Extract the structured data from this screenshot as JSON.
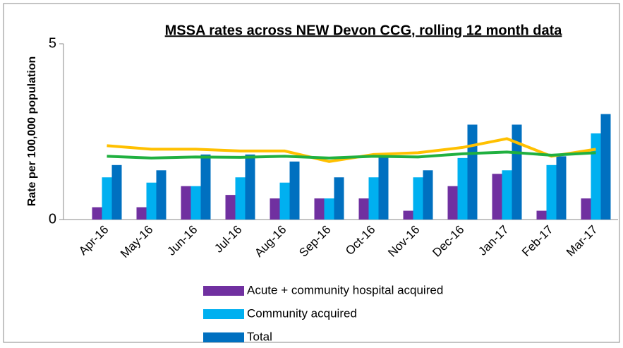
{
  "chart_data": {
    "type": "bar",
    "title": "MSSA rates across NEW Devon CCG, rolling 12 month data",
    "y_label": "Rate per 100,000 population",
    "categories": [
      "Apr-16",
      "May-16",
      "Jun-16",
      "Jul-16",
      "Aug-16",
      "Sep-16",
      "Oct-16",
      "Nov-16",
      "Dec-16",
      "Jan-17",
      "Feb-17",
      "Mar-17"
    ],
    "series": [
      {
        "name": "Acute + community hospital acquired",
        "type": "bar",
        "color": "#7030a0",
        "values": [
          0.35,
          0.35,
          0.95,
          0.7,
          0.6,
          0.6,
          0.6,
          0.25,
          0.95,
          1.3,
          0.25,
          0.6
        ]
      },
      {
        "name": "Community acquired",
        "type": "bar",
        "color": "#00b0f0",
        "values": [
          1.2,
          1.05,
          0.95,
          1.2,
          1.05,
          0.6,
          1.2,
          1.2,
          1.75,
          1.4,
          1.55,
          2.45
        ]
      },
      {
        "name": "Total",
        "type": "bar",
        "color": "#0070c0",
        "values": [
          1.55,
          1.4,
          1.85,
          1.85,
          1.65,
          1.2,
          1.8,
          1.4,
          2.7,
          2.7,
          1.8,
          3.0
        ]
      },
      {
        "type": "line",
        "color": "#ffc000",
        "values": [
          2.1,
          2.0,
          2.0,
          1.95,
          1.95,
          1.65,
          1.85,
          1.9,
          2.05,
          2.3,
          1.8,
          2.0
        ]
      },
      {
        "type": "line",
        "color": "#20b040",
        "values": [
          1.8,
          1.75,
          1.78,
          1.77,
          1.8,
          1.75,
          1.8,
          1.78,
          1.87,
          1.92,
          1.83,
          1.9
        ]
      }
    ],
    "ylim": [
      0,
      5
    ],
    "yticks": [
      0,
      5
    ]
  }
}
